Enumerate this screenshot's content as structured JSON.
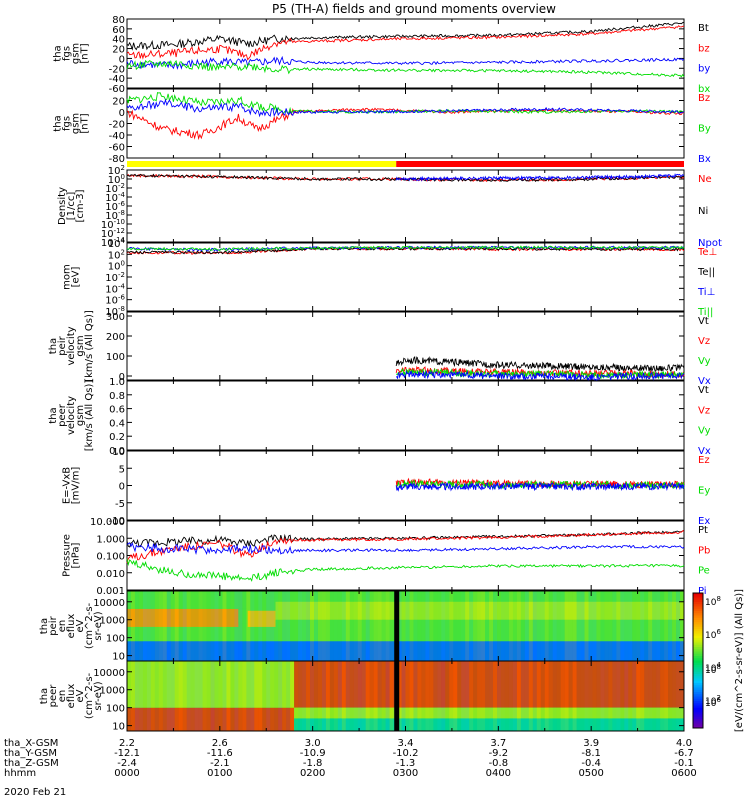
{
  "title": "P5 (TH-A) fields and ground moments overview",
  "date_label": "2020 Feb 21",
  "ephemeris": {
    "row_labels": [
      "tha_X-GSM",
      "tha_Y-GSM",
      "tha_Z-GSM",
      "hhmm"
    ],
    "columns": [
      [
        "2.2",
        "-12.1",
        "-2.4",
        "0000"
      ],
      [
        "2.6",
        "-11.6",
        "-2.1",
        "0100"
      ],
      [
        "3.0",
        "-10.9",
        "-1.8",
        "0200"
      ],
      [
        "3.4",
        "-10.2",
        "-1.3",
        "0300"
      ],
      [
        "3.7",
        "-9.2",
        "-0.8",
        "0400"
      ],
      [
        "3.9",
        "-8.1",
        "-0.4",
        "0500"
      ],
      [
        "4.0",
        "-6.7",
        "-0.1",
        "0600"
      ]
    ]
  },
  "colorbar": {
    "tick_labels": [
      "10^8",
      "10^6",
      "10^4",
      "10^2"
    ],
    "label": "[eV/(cm^2-s-sr-eV)] (All Qs)]"
  },
  "mode_bar": {
    "segments": [
      {
        "from_hour": 0.0,
        "to_hour": 2.9,
        "color": "#ffff00"
      },
      {
        "from_hour": 2.9,
        "to_hour": 6.0,
        "color": "#ff0000"
      }
    ]
  },
  "chart_data": [
    {
      "type": "line",
      "id": "fgs_gsm",
      "ylabel": [
        "tha",
        "fgs",
        "gsm",
        "[nT]"
      ],
      "yticks": [
        "80",
        "60",
        "40",
        "20",
        "0",
        "-20",
        "-40",
        "-60"
      ],
      "ylim": [
        -60,
        80
      ],
      "x_unit": "hour",
      "xlim": [
        0,
        6
      ],
      "series": [
        {
          "name": "Bt",
          "color": "#000000",
          "x": [
            0,
            0.5,
            1.0,
            1.3,
            1.6,
            2.0,
            3.0,
            4.0,
            5.0,
            6.0
          ],
          "values": [
            25,
            28,
            40,
            30,
            40,
            42,
            45,
            47,
            55,
            72
          ]
        },
        {
          "name": "bz",
          "color": "#ff0000",
          "x": [
            0,
            0.5,
            1.0,
            1.3,
            1.6,
            2.0,
            3.0,
            4.0,
            5.0,
            6.0
          ],
          "values": [
            5,
            10,
            20,
            5,
            32,
            35,
            40,
            43,
            50,
            65
          ]
        },
        {
          "name": "by",
          "color": "#0000ff",
          "x": [
            0,
            0.5,
            1.0,
            1.3,
            1.6,
            2.0,
            3.0,
            4.0,
            5.0,
            6.0
          ],
          "values": [
            -10,
            -15,
            -5,
            -10,
            -5,
            -8,
            -10,
            -8,
            -5,
            -2
          ]
        },
        {
          "name": "bx",
          "color": "#00dd00",
          "x": [
            0,
            0.5,
            1.0,
            1.3,
            1.6,
            2.0,
            3.0,
            4.0,
            5.0,
            6.0
          ],
          "values": [
            -15,
            -10,
            -20,
            -15,
            -22,
            -22,
            -24,
            -25,
            -28,
            -35
          ]
        }
      ]
    },
    {
      "type": "line",
      "id": "fgs_gsm_detrend",
      "ylabel": [
        "tha",
        "fgs",
        "gsm",
        "[nT]"
      ],
      "yticks": [
        "20",
        "0",
        "-20",
        "-40",
        "-60",
        "-80"
      ],
      "ylim": [
        -80,
        40
      ],
      "x_unit": "hour",
      "xlim": [
        0,
        6
      ],
      "series": [
        {
          "name": "Bz",
          "color": "#ff0000",
          "x": [
            0,
            0.4,
            0.8,
            1.2,
            1.4,
            1.8,
            2.5,
            3.5,
            4.5,
            5.5,
            6.0
          ],
          "values": [
            0,
            -30,
            -40,
            -10,
            -30,
            0,
            5,
            0,
            3,
            0,
            -3
          ]
        },
        {
          "name": "By",
          "color": "#00dd00",
          "x": [
            0,
            0.4,
            0.8,
            1.2,
            1.4,
            1.8,
            2.5,
            3.5,
            4.5,
            5.5,
            6.0
          ],
          "values": [
            20,
            28,
            15,
            20,
            10,
            2,
            0,
            2,
            0,
            2,
            0
          ]
        },
        {
          "name": "Bx",
          "color": "#0000ff",
          "x": [
            0,
            0.4,
            0.8,
            1.2,
            1.4,
            1.8,
            2.5,
            3.5,
            4.5,
            5.5,
            6.0
          ],
          "values": [
            5,
            15,
            5,
            10,
            0,
            0,
            0,
            2,
            5,
            2,
            0
          ]
        }
      ]
    },
    {
      "type": "line",
      "id": "density",
      "ylabel": [
        "Density",
        "[1/cc]",
        "[cm-3]"
      ],
      "yticks": [
        "10^2",
        "10^0",
        "10^-2",
        "10^-4",
        "10^-6",
        "10^-8",
        "10^-10",
        "10^-12",
        "10^-14"
      ],
      "ylim_log10": [
        -14,
        2
      ],
      "x_unit": "hour",
      "xlim": [
        0,
        6
      ],
      "series": [
        {
          "name": "Ne",
          "color": "#ff0000",
          "x": [
            0,
            1,
            2,
            2.9,
            3.5,
            4.5,
            5.5,
            6.0
          ],
          "log10_values": [
            0.8,
            0.5,
            0.0,
            0.0,
            -0.2,
            -0.2,
            0.2,
            0.5
          ]
        },
        {
          "name": "Ni",
          "color": "#000000",
          "x": [
            0,
            1,
            2,
            2.9,
            3.5,
            4.5,
            5.5,
            6.0
          ],
          "log10_values": [
            0.8,
            0.5,
            0.0,
            0.0,
            -0.2,
            -0.2,
            0.2,
            0.5
          ]
        },
        {
          "name": "Npot",
          "color": "#0000ff",
          "x": [
            2.9,
            3.5,
            4.5,
            5.5,
            6.0
          ],
          "log10_values": [
            0.0,
            0.1,
            0.3,
            0.5,
            0.8
          ]
        }
      ]
    },
    {
      "type": "line",
      "id": "temperature",
      "ylabel": [
        "mom",
        "[eV]"
      ],
      "yticks": [
        "10^4",
        "10^2",
        "10^0",
        "10^-2",
        "10^-4",
        "10^-6",
        "10^-8"
      ],
      "ylim_log10": [
        -8,
        4
      ],
      "x_unit": "hour",
      "xlim": [
        0,
        6
      ],
      "series": [
        {
          "name": "Te⊥",
          "color": "#ff0000",
          "x": [
            0,
            1,
            1.5,
            2,
            3,
            4,
            5,
            6
          ],
          "log10_values": [
            2.3,
            2.2,
            2.5,
            3.0,
            3.0,
            2.9,
            2.9,
            2.8
          ]
        },
        {
          "name": "Te||",
          "color": "#000000",
          "x": [
            0,
            1,
            1.5,
            2,
            3,
            4,
            5,
            6
          ],
          "log10_values": [
            2.4,
            2.3,
            2.6,
            3.0,
            3.0,
            3.0,
            2.9,
            2.9
          ]
        },
        {
          "name": "Ti⊥",
          "color": "#0000ff",
          "x": [
            0,
            1,
            1.5,
            2,
            3,
            4,
            5,
            6
          ],
          "log10_values": [
            3.0,
            2.8,
            3.0,
            3.1,
            3.2,
            3.2,
            3.2,
            3.2
          ]
        },
        {
          "name": "Ti||",
          "color": "#00dd00",
          "x": [
            0,
            1,
            1.5,
            2,
            3,
            4,
            5,
            6
          ],
          "log10_values": [
            3.0,
            2.9,
            3.0,
            3.1,
            3.2,
            3.2,
            3.2,
            3.2
          ]
        }
      ]
    },
    {
      "type": "line",
      "id": "peir_velocity",
      "ylabel": [
        "tha",
        "peir",
        "velocity",
        "gsm",
        "[km/s (All Qs)]"
      ],
      "yticks": [
        "300",
        "200",
        "100",
        "0"
      ],
      "ylim": [
        -20,
        320
      ],
      "x_unit": "hour",
      "xlim": [
        0,
        6
      ],
      "series": [
        {
          "name": "Vt",
          "color": "#000000",
          "x": [
            2.9,
            3.0,
            3.5,
            4.0,
            4.5,
            5.0,
            5.5,
            6.0
          ],
          "values": [
            60,
            80,
            70,
            55,
            50,
            45,
            40,
            40
          ]
        },
        {
          "name": "Vz",
          "color": "#ff0000",
          "x": [
            2.9,
            3.0,
            3.5,
            4.0,
            4.5,
            5.0,
            5.5,
            6.0
          ],
          "values": [
            20,
            30,
            25,
            20,
            15,
            15,
            10,
            10
          ]
        },
        {
          "name": "Vy",
          "color": "#00dd00",
          "x": [
            2.9,
            3.0,
            3.5,
            4.0,
            4.5,
            5.0,
            5.5,
            6.0
          ],
          "values": [
            10,
            20,
            15,
            10,
            10,
            5,
            5,
            5
          ]
        },
        {
          "name": "Vx",
          "color": "#0000ff",
          "x": [
            2.9,
            3.0,
            3.5,
            4.0,
            4.5,
            5.0,
            5.5,
            6.0
          ],
          "values": [
            0,
            10,
            5,
            0,
            0,
            -5,
            0,
            0
          ]
        }
      ]
    },
    {
      "type": "line",
      "id": "peer_velocity",
      "ylabel": [
        "tha",
        "peer",
        "velocity",
        "gsm",
        "[km/s (All Qs)]"
      ],
      "yticks": [
        "1.0",
        "0.8",
        "0.6",
        "0.4",
        "0.2",
        "0.0"
      ],
      "ylim": [
        0,
        1
      ],
      "x_unit": "hour",
      "xlim": [
        0,
        6
      ],
      "series": [
        {
          "name": "Vt",
          "color": "#000000",
          "x": [],
          "values": []
        },
        {
          "name": "Vz",
          "color": "#ff0000",
          "x": [],
          "values": []
        },
        {
          "name": "Vy",
          "color": "#00dd00",
          "x": [],
          "values": []
        },
        {
          "name": "Vx",
          "color": "#0000ff",
          "x": [],
          "values": []
        }
      ]
    },
    {
      "type": "line",
      "id": "efield",
      "ylabel": [
        "E=-VxB",
        "[mV/m]"
      ],
      "yticks": [
        "10",
        "5",
        "0",
        "-5",
        "-10"
      ],
      "ylim": [
        -10,
        10
      ],
      "x_unit": "hour",
      "xlim": [
        0,
        6
      ],
      "series": [
        {
          "name": "Ez",
          "color": "#ff0000",
          "x": [
            2.9,
            3.0,
            3.5,
            4.0,
            4.5,
            5.0,
            5.5,
            6.0
          ],
          "values": [
            0.5,
            1.0,
            0.8,
            0.5,
            0.5,
            0.4,
            0.3,
            0.3
          ]
        },
        {
          "name": "Ey",
          "color": "#00dd00",
          "x": [
            2.9,
            3.0,
            3.5,
            4.0,
            4.5,
            5.0,
            5.5,
            6.0
          ],
          "values": [
            0.2,
            0.5,
            0.4,
            0.2,
            0.2,
            0.2,
            0.1,
            0.1
          ]
        },
        {
          "name": "Ex",
          "color": "#0000ff",
          "x": [
            2.9,
            3.0,
            3.5,
            4.0,
            4.5,
            5.0,
            5.5,
            6.0
          ],
          "values": [
            -0.5,
            -0.3,
            -0.4,
            -0.2,
            -0.3,
            -0.3,
            -0.2,
            -0.2
          ]
        }
      ]
    },
    {
      "type": "line",
      "id": "pressure",
      "ylabel": [
        "Pressure",
        "[nPa]"
      ],
      "yticks": [
        "10.000",
        "1.000",
        "0.100",
        "0.010",
        "0.001"
      ],
      "ylim_log10": [
        -3,
        1
      ],
      "x_unit": "hour",
      "xlim": [
        0,
        6
      ],
      "series": [
        {
          "name": "Pt",
          "color": "#000000",
          "x": [
            0,
            0.5,
            1.0,
            1.3,
            1.6,
            2,
            3,
            4,
            5,
            6
          ],
          "log10_values": [
            -0.3,
            -0.2,
            -0.1,
            -0.3,
            0.0,
            -0.05,
            0.0,
            0.1,
            0.2,
            0.4
          ]
        },
        {
          "name": "Pb",
          "color": "#ff0000",
          "x": [
            0,
            0.5,
            1.0,
            1.3,
            1.6,
            2,
            3,
            4,
            5,
            6
          ],
          "log10_values": [
            -1.2,
            -0.6,
            -0.3,
            -1.0,
            -0.1,
            -0.1,
            -0.05,
            0.05,
            0.2,
            0.35
          ]
        },
        {
          "name": "Pe",
          "color": "#00dd00",
          "x": [
            0,
            0.5,
            1.0,
            1.3,
            1.6,
            2,
            3,
            4,
            5,
            6
          ],
          "log10_values": [
            -1.4,
            -2.0,
            -2.2,
            -2.4,
            -2.0,
            -1.8,
            -1.7,
            -1.6,
            -1.6,
            -1.6
          ]
        },
        {
          "name": "Pi",
          "color": "#0000ff",
          "x": [
            0,
            0.5,
            1.0,
            1.3,
            1.6,
            2,
            3,
            4,
            5,
            6
          ],
          "log10_values": [
            -0.5,
            -0.6,
            -0.7,
            -0.6,
            -0.7,
            -0.7,
            -0.7,
            -0.6,
            -0.5,
            -0.5
          ]
        }
      ]
    },
    {
      "type": "heatmap",
      "id": "peir_en_eflux",
      "ylabel": [
        "tha",
        "peir",
        "en",
        "eflux",
        "eV",
        "(cm^2-s-",
        "sr-eV)"
      ],
      "yticks": [
        "10000",
        "1000",
        "100",
        "10"
      ],
      "ylim_log10": [
        0.7,
        4.6
      ],
      "x_unit": "hour",
      "xlim": [
        0,
        6
      ],
      "color_scale": "log10 eflux 1-9",
      "regions": [
        {
          "from_hour": 0.0,
          "to_hour": 1.2,
          "min_log10_energy": 2.6,
          "max_log10_energy": 3.6,
          "level": 7.5
        },
        {
          "from_hour": 1.2,
          "to_hour": 1.3,
          "min_log10_energy": 2.8,
          "max_log10_energy": 3.6,
          "level": 5.5
        },
        {
          "from_hour": 1.3,
          "to_hour": 1.6,
          "min_log10_energy": 2.6,
          "max_log10_energy": 3.5,
          "level": 7.0
        },
        {
          "from_hour": 1.6,
          "to_hour": 6.0,
          "min_log10_energy": 3.0,
          "max_log10_energy": 4.0,
          "level": 6.0
        },
        {
          "from_hour": 0.0,
          "to_hour": 6.0,
          "min_log10_energy": 0.7,
          "max_log10_energy": 1.8,
          "level": 3.0
        }
      ]
    },
    {
      "type": "heatmap",
      "id": "peer_en_eflux",
      "ylabel": [
        "tha",
        "peer",
        "en",
        "eflux",
        "eV",
        "(cm^2-s-",
        "sr-eV)"
      ],
      "yticks": [
        "10000",
        "1000",
        "100",
        "10"
      ],
      "ylim_log10": [
        0.7,
        4.6
      ],
      "x_unit": "hour",
      "xlim": [
        0,
        6
      ],
      "color_scale": "log10 eflux 1-9",
      "regions": [
        {
          "from_hour": 0.0,
          "to_hour": 1.8,
          "min_log10_energy": 0.7,
          "max_log10_energy": 2.0,
          "level": 8.5
        },
        {
          "from_hour": 0.0,
          "to_hour": 1.8,
          "min_log10_energy": 2.0,
          "max_log10_energy": 4.6,
          "level": 6.0
        },
        {
          "from_hour": 1.8,
          "to_hour": 6.0,
          "min_log10_energy": 2.0,
          "max_log10_energy": 4.6,
          "level": 8.5
        },
        {
          "from_hour": 1.8,
          "to_hour": 6.0,
          "min_log10_energy": 1.4,
          "max_log10_energy": 2.0,
          "level": 6.0
        },
        {
          "from_hour": 1.8,
          "to_hour": 6.0,
          "min_log10_energy": 0.7,
          "max_log10_energy": 1.4,
          "level": 4.5
        }
      ]
    }
  ]
}
